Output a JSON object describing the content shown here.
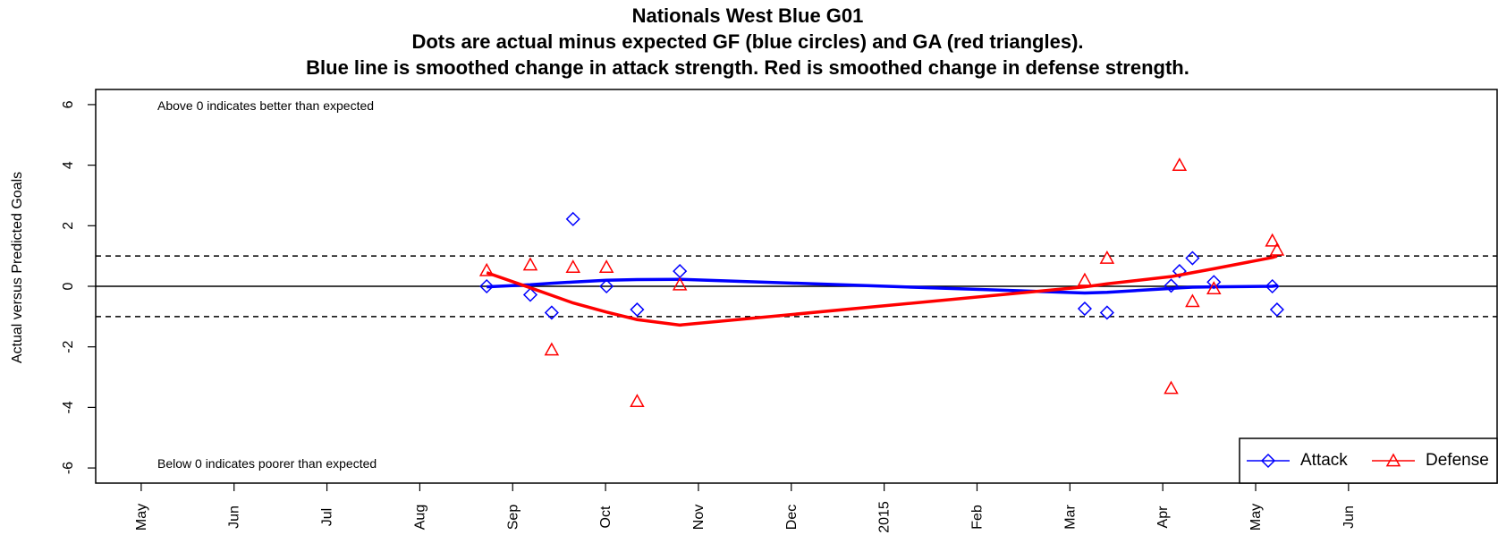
{
  "chart_data": {
    "type": "scatter",
    "title": [
      "Nationals West Blue G01",
      "Dots are actual minus expected GF (blue circles) and GA (red triangles).",
      "Blue line is smoothed change in attack strength. Red is smoothed change in defense strength."
    ],
    "y_label": "Actual versus Predicted Goals",
    "annotations": [
      "Above 0 indicates better than expected",
      "Below 0 indicates poorer than expected"
    ],
    "xlim": [
      -0.49,
      14.6
    ],
    "ylim": [
      -6.5,
      6.5
    ],
    "xticks": [
      {
        "value": 0,
        "label": "May"
      },
      {
        "value": 1,
        "label": "Jun"
      },
      {
        "value": 2,
        "label": "Jul"
      },
      {
        "value": 3,
        "label": "Aug"
      },
      {
        "value": 4,
        "label": "Sep"
      },
      {
        "value": 5,
        "label": "Oct"
      },
      {
        "value": 6,
        "label": "Nov"
      },
      {
        "value": 7,
        "label": "Dec"
      },
      {
        "value": 8,
        "label": "2015"
      },
      {
        "value": 9,
        "label": "Feb"
      },
      {
        "value": 10,
        "label": "Mar"
      },
      {
        "value": 11,
        "label": "Apr"
      },
      {
        "value": 12,
        "label": "May"
      },
      {
        "value": 13,
        "label": "Jun"
      }
    ],
    "yticks": [
      -6,
      -4,
      -2,
      0,
      2,
      4,
      6
    ],
    "hline": 0,
    "dashed_hlines": [
      -1,
      1
    ],
    "legend": "bottom-right",
    "series": [
      {
        "name": "Attack",
        "color": "#0000ff",
        "marker": "diamond",
        "x": [
          3.72,
          4.19,
          4.42,
          4.65,
          5.01,
          5.34,
          5.8,
          10.16,
          10.4,
          11.09,
          11.18,
          11.32,
          11.55,
          12.18,
          12.23
        ],
        "values": [
          0.0,
          -0.28,
          -0.87,
          2.22,
          0.0,
          -0.77,
          0.5,
          -0.74,
          -0.87,
          0.02,
          0.5,
          0.93,
          0.14,
          0.0,
          -0.77
        ],
        "smooth": [
          -0.02,
          0.05,
          0.1,
          0.14,
          0.2,
          0.22,
          0.23,
          -0.22,
          -0.2,
          -0.07,
          -0.05,
          -0.03,
          -0.02,
          0.0,
          0.02
        ]
      },
      {
        "name": "Defense",
        "color": "#ff0000",
        "marker": "triangle",
        "x": [
          3.72,
          4.19,
          4.42,
          4.65,
          5.01,
          5.34,
          5.8,
          10.16,
          10.4,
          11.09,
          11.18,
          11.32,
          11.55,
          12.18,
          12.23
        ],
        "values": [
          0.52,
          0.71,
          -2.1,
          0.63,
          0.63,
          -3.8,
          0.05,
          0.2,
          0.93,
          -3.37,
          4.0,
          -0.5,
          -0.08,
          1.5,
          1.2
        ],
        "smooth": [
          0.45,
          -0.05,
          -0.3,
          -0.55,
          -0.85,
          -1.1,
          -1.28,
          -0.02,
          0.08,
          0.32,
          0.37,
          0.45,
          0.58,
          0.95,
          1.0
        ]
      }
    ]
  }
}
